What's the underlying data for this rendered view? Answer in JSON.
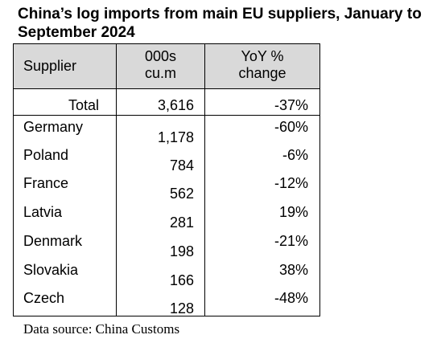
{
  "title": "China’s log imports from main EU suppliers, January to September 2024",
  "table": {
    "headers": {
      "supplier": "Supplier",
      "volume_line1": "000s",
      "volume_line2": "cu.m",
      "change_line1": "YoY %",
      "change_line2": "change"
    },
    "total": {
      "label": "Total",
      "volume": "3,616",
      "change": "-37%"
    },
    "rows": [
      {
        "supplier": "Germany",
        "volume": "1,178",
        "change": "-60%"
      },
      {
        "supplier": "Poland",
        "volume": "784",
        "change": "-6%"
      },
      {
        "supplier": "France",
        "volume": "562",
        "change": "-12%"
      },
      {
        "supplier": "Latvia",
        "volume": "281",
        "change": "19%"
      },
      {
        "supplier": "Denmark",
        "volume": "198",
        "change": "-21%"
      },
      {
        "supplier": "Slovakia",
        "volume": "166",
        "change": "38%"
      },
      {
        "supplier": "Czech",
        "volume": "128",
        "change": "-48%"
      }
    ]
  },
  "source": "Data source: China Customs"
}
